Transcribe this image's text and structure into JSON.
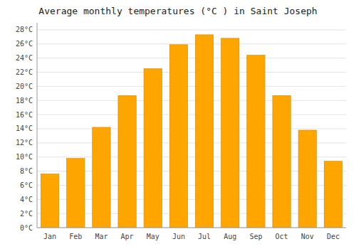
{
  "chart_data": {
    "type": "bar",
    "title": "Average monthly temperatures (°C ) in Saint Joseph",
    "categories": [
      "Jan",
      "Feb",
      "Mar",
      "Apr",
      "May",
      "Jun",
      "Jul",
      "Aug",
      "Sep",
      "Oct",
      "Nov",
      "Dec"
    ],
    "values": [
      7.6,
      9.8,
      14.2,
      18.7,
      22.5,
      25.9,
      27.3,
      26.8,
      24.4,
      18.7,
      13.8,
      9.4
    ],
    "color": "#FFA500",
    "ylim": [
      0,
      29
    ],
    "yticks": [
      {
        "value": 0,
        "label": "0°C"
      },
      {
        "value": 2,
        "label": "2°C"
      },
      {
        "value": 4,
        "label": "4°C"
      },
      {
        "value": 6,
        "label": "6°C"
      },
      {
        "value": 8,
        "label": "8°C"
      },
      {
        "value": 10,
        "label": "10°C"
      },
      {
        "value": 12,
        "label": "12°C"
      },
      {
        "value": 14,
        "label": "14°C"
      },
      {
        "value": 16,
        "label": "16°C"
      },
      {
        "value": 18,
        "label": "18°C"
      },
      {
        "value": 20,
        "label": "20°C"
      },
      {
        "value": 22,
        "label": "22°C"
      },
      {
        "value": 24,
        "label": "24°C"
      },
      {
        "value": 26,
        "label": "26°C"
      },
      {
        "value": 28,
        "label": "28°C"
      }
    ],
    "grid": true
  }
}
